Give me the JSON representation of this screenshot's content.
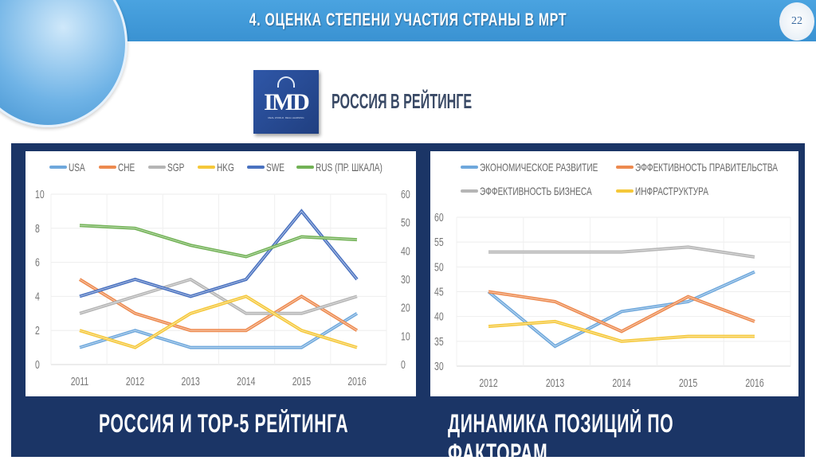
{
  "header": {
    "title": "4. ОЦЕНКА СТЕПЕНИ УЧАСТИЯ СТРАНЫ В МРТ",
    "page_number": "22"
  },
  "logo": {
    "text": "IMD",
    "tagline": "REAL WORLD. REAL LEARNING"
  },
  "subtitle": "РОССИЯ В РЕЙТИНГЕ",
  "captions": {
    "left": "РОССИЯ И ТОР-5 РЕЙТИНГА",
    "right": "ДИНАМИКА ПОЗИЦИЙ ПО ФАКТОРАМ"
  },
  "chart_data": [
    {
      "type": "line",
      "title": "",
      "categories": [
        "2011",
        "2012",
        "2013",
        "2014",
        "2015",
        "2016"
      ],
      "ylim": [
        0,
        10
      ],
      "yticks": [
        "0",
        "2",
        "4",
        "6",
        "8",
        "10"
      ],
      "y2lim": [
        0,
        60
      ],
      "y2ticks": [
        "0",
        "10",
        "20",
        "30",
        "40",
        "50",
        "60"
      ],
      "legend": "top",
      "series": [
        {
          "name": "USA",
          "color": "#6fa8dc",
          "axis": "left",
          "values": [
            1,
            2,
            1,
            1,
            1,
            3
          ]
        },
        {
          "name": "CHE",
          "color": "#ed8a4f",
          "axis": "left",
          "values": [
            5,
            3,
            2,
            2,
            4,
            2
          ]
        },
        {
          "name": "SGP",
          "color": "#b5b5b5",
          "axis": "left",
          "values": [
            3,
            4,
            5,
            3,
            3,
            4
          ]
        },
        {
          "name": "HKG",
          "color": "#f5c83a",
          "axis": "left",
          "values": [
            2,
            1,
            3,
            4,
            2,
            1
          ]
        },
        {
          "name": "SWE",
          "color": "#4a72c0",
          "axis": "left",
          "values": [
            4,
            5,
            4,
            5,
            9,
            5
          ]
        },
        {
          "name": "RUS (ПР. ШКАЛА)",
          "color": "#72b256",
          "axis": "right",
          "values": [
            49,
            48,
            42,
            38,
            45,
            44
          ]
        }
      ]
    },
    {
      "type": "line",
      "title": "",
      "categories": [
        "2012",
        "2013",
        "2014",
        "2015",
        "2016"
      ],
      "ylim": [
        30,
        60
      ],
      "yticks": [
        "30",
        "35",
        "40",
        "45",
        "50",
        "55",
        "60"
      ],
      "legend": "top",
      "series": [
        {
          "name": "ЭКОНОМИЧЕСКОЕ РАЗВИТИЕ",
          "color": "#6fa8dc",
          "values": [
            45,
            34,
            41,
            43,
            49
          ]
        },
        {
          "name": "ЭФФЕКТИВНОСТЬ ПРАВИТЕЛЬСТВА",
          "color": "#ed8a4f",
          "values": [
            45,
            43,
            37,
            44,
            39
          ]
        },
        {
          "name": "ЭФФЕКТИВНОСТЬ БИЗНЕСА",
          "color": "#b5b5b5",
          "values": [
            53,
            53,
            53,
            54,
            52
          ]
        },
        {
          "name": "ИНФРАСТРУКТУРА",
          "color": "#f5c83a",
          "values": [
            38,
            39,
            35,
            36,
            36
          ]
        }
      ]
    }
  ]
}
